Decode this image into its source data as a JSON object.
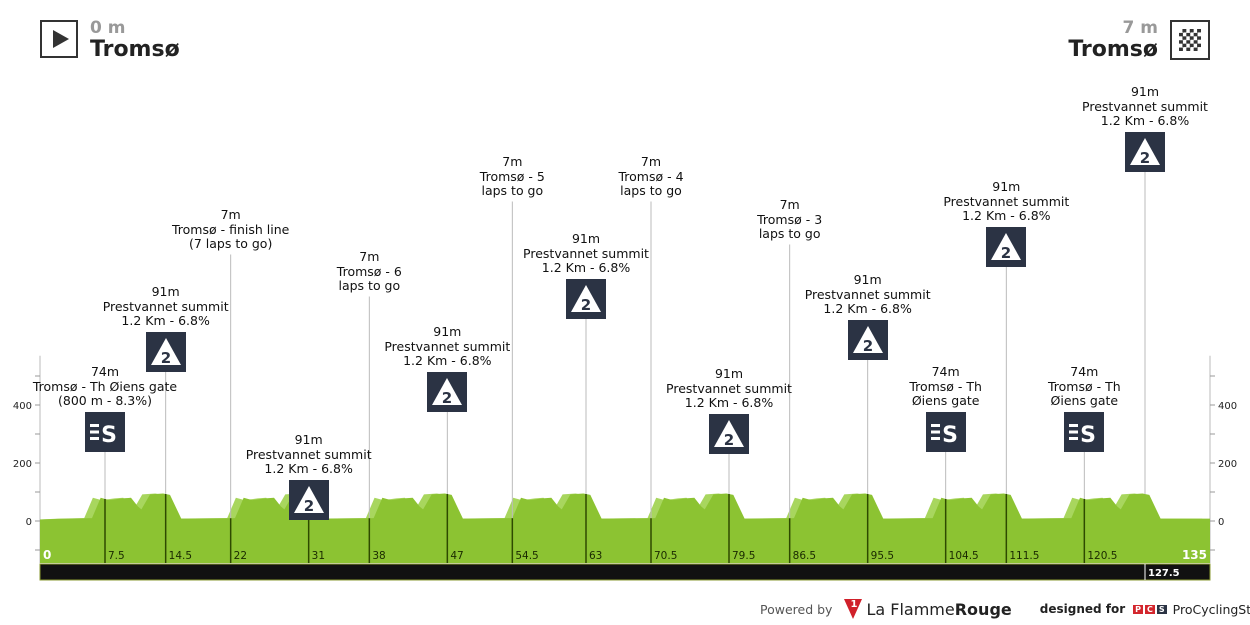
{
  "header": {
    "start": {
      "distance": "0 m",
      "name": "Tromsø",
      "icon": "start-play-icon"
    },
    "finish": {
      "distance": "7 m",
      "name": "Tromsø",
      "icon": "checkered-finish-icon"
    }
  },
  "colors": {
    "profile": "#8cc332",
    "profile_light": "#a8d65e",
    "marker": "#2b3344",
    "bar": "#111111"
  },
  "chart_data": {
    "type": "area",
    "xlabel": "",
    "ylabel": "",
    "xlim": [
      0,
      135
    ],
    "ylim": [
      -145,
      570
    ],
    "yticks": [
      0,
      200,
      400
    ],
    "xtick_labels": [
      "0",
      "7.5",
      "14.5",
      "22",
      "31",
      "38",
      "47",
      "54.5",
      "63",
      "70.5",
      "79.5",
      "86.5",
      "95.5",
      "104.5",
      "111.5",
      "120.5",
      "135"
    ],
    "xticks": [
      0,
      7.5,
      14.5,
      22,
      31,
      38,
      47,
      54.5,
      63,
      70.5,
      79.5,
      86.5,
      95.5,
      104.5,
      111.5,
      120.5,
      135
    ],
    "bar_marker": "127.5",
    "profile": [
      [
        0,
        5
      ],
      [
        3,
        8
      ],
      [
        6,
        10
      ],
      [
        7,
        80
      ],
      [
        8,
        72
      ],
      [
        9.5,
        78
      ],
      [
        10.5,
        80
      ],
      [
        11.3,
        50
      ],
      [
        11.7,
        40
      ],
      [
        12.7,
        92
      ],
      [
        14.2,
        95
      ],
      [
        15,
        90
      ],
      [
        16.3,
        8
      ],
      [
        22.5,
        10
      ],
      [
        23.5,
        80
      ],
      [
        24.5,
        72
      ],
      [
        26,
        78
      ],
      [
        27,
        80
      ],
      [
        27.8,
        50
      ],
      [
        28.2,
        40
      ],
      [
        29.2,
        92
      ],
      [
        30.7,
        95
      ],
      [
        31.5,
        90
      ],
      [
        32.8,
        8
      ],
      [
        38.5,
        10
      ],
      [
        39.5,
        80
      ],
      [
        40.5,
        72
      ],
      [
        42,
        78
      ],
      [
        43,
        80
      ],
      [
        43.8,
        50
      ],
      [
        44.2,
        40
      ],
      [
        45.2,
        92
      ],
      [
        46.7,
        95
      ],
      [
        47.5,
        90
      ],
      [
        48.8,
        8
      ],
      [
        54.5,
        10
      ],
      [
        55.5,
        80
      ],
      [
        56.5,
        72
      ],
      [
        58,
        78
      ],
      [
        59,
        80
      ],
      [
        59.8,
        50
      ],
      [
        60.2,
        40
      ],
      [
        61.2,
        92
      ],
      [
        62.7,
        95
      ],
      [
        63.5,
        90
      ],
      [
        64.8,
        8
      ],
      [
        71,
        10
      ],
      [
        72,
        80
      ],
      [
        73,
        72
      ],
      [
        74.5,
        78
      ],
      [
        75.5,
        80
      ],
      [
        76.3,
        50
      ],
      [
        76.7,
        40
      ],
      [
        77.7,
        92
      ],
      [
        79.2,
        95
      ],
      [
        80,
        90
      ],
      [
        81.3,
        8
      ],
      [
        87,
        10
      ],
      [
        88,
        80
      ],
      [
        89,
        72
      ],
      [
        90.5,
        78
      ],
      [
        91.5,
        80
      ],
      [
        92.3,
        50
      ],
      [
        92.7,
        40
      ],
      [
        93.7,
        92
      ],
      [
        95.2,
        95
      ],
      [
        96,
        90
      ],
      [
        97.3,
        8
      ],
      [
        103,
        10
      ],
      [
        104,
        80
      ],
      [
        105,
        72
      ],
      [
        106.5,
        78
      ],
      [
        107.5,
        80
      ],
      [
        108.3,
        50
      ],
      [
        108.7,
        40
      ],
      [
        109.7,
        92
      ],
      [
        111.2,
        95
      ],
      [
        112,
        90
      ],
      [
        113.3,
        8
      ],
      [
        119,
        10
      ],
      [
        120,
        80
      ],
      [
        121,
        72
      ],
      [
        122.5,
        78
      ],
      [
        123.5,
        80
      ],
      [
        124.3,
        50
      ],
      [
        124.7,
        40
      ],
      [
        125.7,
        92
      ],
      [
        127.2,
        95
      ],
      [
        128,
        90
      ],
      [
        129.3,
        8
      ],
      [
        135,
        8
      ]
    ],
    "annotations": [
      {
        "km": 7.5,
        "lines": [
          "74m",
          "Tromsø - Th Øiens gate",
          "(800 m - 8.3%)"
        ],
        "type": "sprint"
      },
      {
        "km": 14.5,
        "lines": [
          "91m",
          "Prestvannet summit",
          "1.2 Km - 6.8%"
        ],
        "type": "kom",
        "cat": "2"
      },
      {
        "km": 22,
        "lines": [
          "7m",
          "Tromsø - finish line",
          "(7 laps to go)"
        ],
        "type": "none"
      },
      {
        "km": 31,
        "lines": [
          "91m",
          "Prestvannet summit",
          "1.2 Km - 6.8%"
        ],
        "type": "kom",
        "cat": "2"
      },
      {
        "km": 38,
        "lines": [
          "7m",
          "Tromsø - 6",
          "laps to go"
        ],
        "type": "none"
      },
      {
        "km": 47,
        "lines": [
          "91m",
          "Prestvannet summit",
          "1.2 Km - 6.8%"
        ],
        "type": "kom",
        "cat": "2"
      },
      {
        "km": 54.5,
        "lines": [
          "7m",
          "Tromsø - 5",
          "laps to go"
        ],
        "type": "none"
      },
      {
        "km": 63,
        "lines": [
          "91m",
          "Prestvannet summit",
          "1.2 Km - 6.8%"
        ],
        "type": "kom",
        "cat": "2"
      },
      {
        "km": 70.5,
        "lines": [
          "7m",
          "Tromsø - 4",
          "laps to go"
        ],
        "type": "none"
      },
      {
        "km": 79.5,
        "lines": [
          "91m",
          "Prestvannet summit",
          "1.2 Km - 6.8%"
        ],
        "type": "kom",
        "cat": "2"
      },
      {
        "km": 86.5,
        "lines": [
          "7m",
          "Tromsø - 3",
          "laps to go"
        ],
        "type": "none"
      },
      {
        "km": 95.5,
        "lines": [
          "91m",
          "Prestvannet summit",
          "1.2 Km - 6.8%"
        ],
        "type": "kom",
        "cat": "2"
      },
      {
        "km": 104.5,
        "lines": [
          "74m",
          "Tromsø - Th",
          "Øiens gate"
        ],
        "type": "sprint"
      },
      {
        "km": 111.5,
        "lines": [
          "91m",
          "Prestvannet summit",
          "1.2 Km - 6.8%"
        ],
        "type": "kom",
        "cat": "2"
      },
      {
        "km": 120.5,
        "lines": [
          "74m",
          "Tromsø - Th",
          "Øiens gate"
        ],
        "type": "sprint"
      },
      {
        "km": 127.5,
        "lines": [
          "91m",
          "Prestvannet summit",
          "1.2 Km - 6.8%"
        ],
        "type": "kom",
        "cat": "2"
      }
    ]
  },
  "footer": {
    "powered_by": "Powered by",
    "brand_1": "La Flamme",
    "brand_2": "Rouge",
    "brand_logo_text": "1",
    "designed_for": "designed for",
    "pcs_letters": [
      "P",
      "C",
      "S"
    ],
    "pcs_name": "ProCyclingStats"
  }
}
